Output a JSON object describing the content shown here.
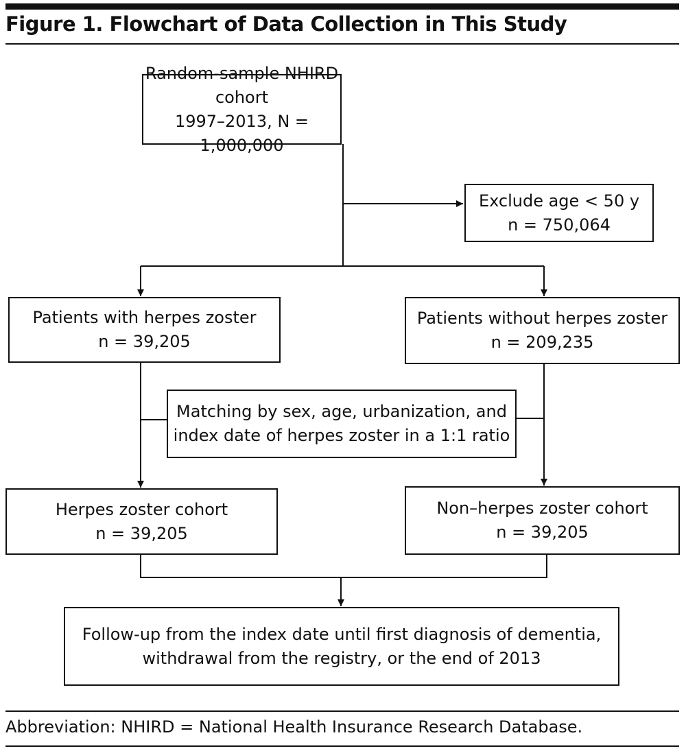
{
  "figure": {
    "title": "Figure 1. Flowchart of Data Collection in This Study",
    "footnote": "Abbreviation: NHIRD = National Health Insurance Research Database."
  },
  "boxes": {
    "source": {
      "line1": "Random-sample NHIRD cohort",
      "line2": "1997–2013, N = 1,000,000"
    },
    "exclude": {
      "line1": "Exclude age < 50 y",
      "line2": "n = 750,064"
    },
    "with_hz": {
      "line1": "Patients with herpes zoster",
      "line2": "n = 39,205"
    },
    "without_hz": {
      "line1": "Patients without herpes zoster",
      "line2": "n = 209,235"
    },
    "matching": {
      "line1": "Matching by sex, age, urbanization, and",
      "line2": "index date of herpes zoster in a 1:1 ratio"
    },
    "hz_cohort": {
      "line1": "Herpes zoster cohort",
      "line2": "n = 39,205"
    },
    "non_hz_cohort": {
      "line1": "Non–herpes zoster cohort",
      "line2": "n = 39,205"
    },
    "followup": {
      "line1": "Follow-up from the index date until first diagnosis of dementia,",
      "line2": "withdrawal from the registry, or the end of 2013"
    }
  }
}
